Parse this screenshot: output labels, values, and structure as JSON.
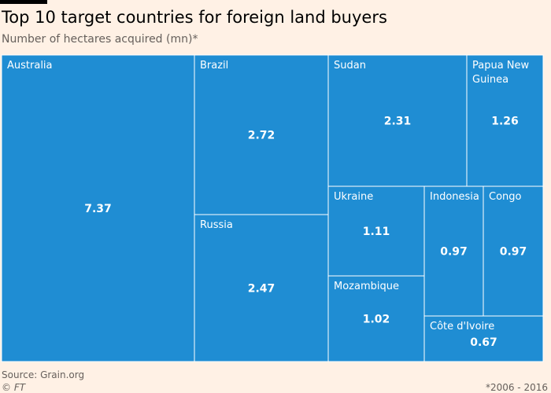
{
  "header": {
    "title": "Top 10 target countries for foreign land buyers",
    "subtitle": "Number of hectares acquired (mn)*"
  },
  "footer": {
    "source": "Source: Grain.org",
    "copyright": "© FT",
    "note": "*2006 - 2016"
  },
  "colors": {
    "tile": "#1f8dd3",
    "border": "#ffffff",
    "text": "#ffffff",
    "background": "#fff1e5"
  },
  "chart_data": {
    "type": "treemap",
    "title": "Top 10 target countries for foreign land buyers",
    "subtitle": "Number of hectares acquired (mn)*",
    "units": "mn hectares",
    "items": [
      {
        "name": "Australia",
        "value": 7.37,
        "label": "7.37"
      },
      {
        "name": "Brazil",
        "value": 2.72,
        "label": "2.72"
      },
      {
        "name": "Sudan",
        "value": 2.31,
        "label": "2.31"
      },
      {
        "name": "Papua New Guinea",
        "label_lines": [
          "Papua New",
          "Guinea"
        ],
        "value": 1.26,
        "label": "1.26"
      },
      {
        "name": "Russia",
        "value": 2.47,
        "label": "2.47"
      },
      {
        "name": "Ukraine",
        "value": 1.11,
        "label": "1.11"
      },
      {
        "name": "Indonesia",
        "value": 0.97,
        "label": "0.97"
      },
      {
        "name": "Congo",
        "value": 0.97,
        "label": "0.97"
      },
      {
        "name": "Mozambique",
        "value": 1.02,
        "label": "1.02"
      },
      {
        "name": "Côte d'Ivoire",
        "value": 0.67,
        "label": "0.67"
      }
    ]
  }
}
